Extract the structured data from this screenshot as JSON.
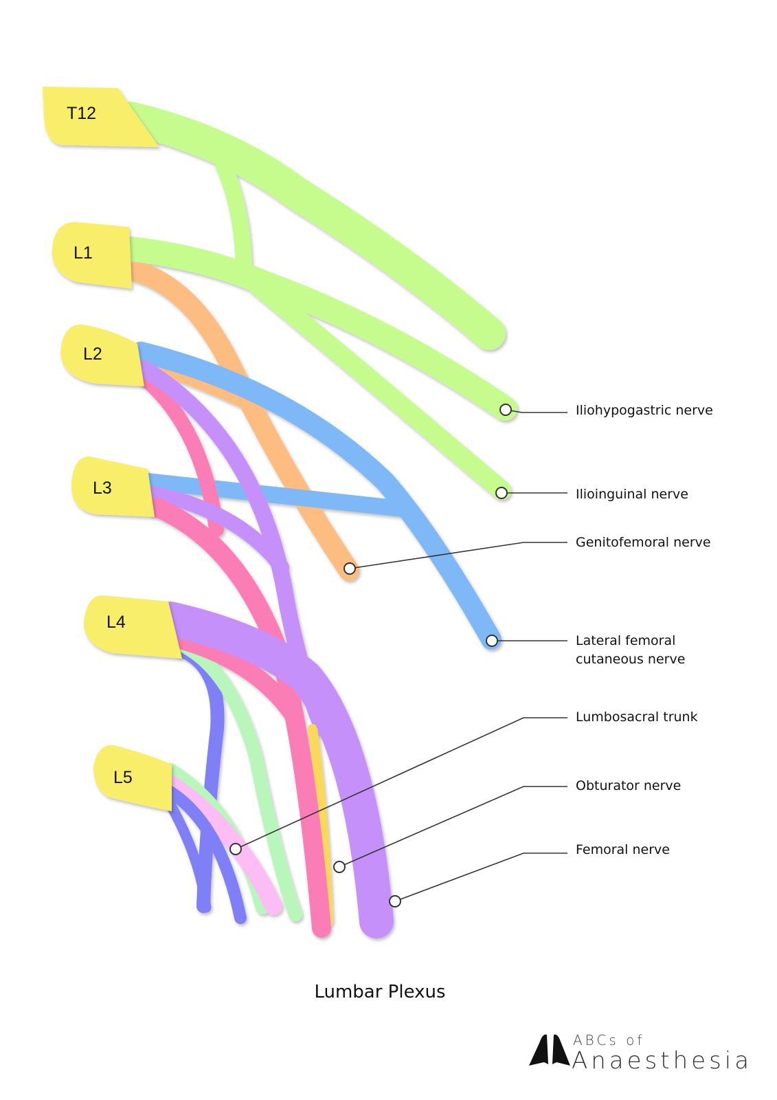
{
  "title": "Lumbar Plexus",
  "roots": [
    "T12",
    "L1",
    "L2",
    "L3",
    "L4",
    "L5"
  ],
  "labels": {
    "iliohypogastric": "Iliohypogastric nerve",
    "ilioinguinal": "Ilioinguinal nerve",
    "genitofemoral": "Genitofemoral nerve",
    "lateral_femoral_1": "Lateral femoral",
    "lateral_femoral_2": "cutaneous nerve",
    "lumbosacral": "Lumbosacral trunk",
    "obturator": "Obturator nerve",
    "femoral": "Femoral nerve"
  },
  "logo": {
    "line1": "ABCs of",
    "line2": "Anaesthesia"
  },
  "colors": {
    "root": "#f9ee6a",
    "iliohypogastric_ilioinguinal": "#c6fb8e",
    "genitofemoral": "#fdbd80",
    "lateral_femoral": "#7fb8f7",
    "obturator": "#fb7db5",
    "femoral": "#c690fa",
    "lumbosacral_a": "#8080f6",
    "lumbosacral_b": "#b9f6bb",
    "lumbosacral_c": "#fbbdf3"
  }
}
